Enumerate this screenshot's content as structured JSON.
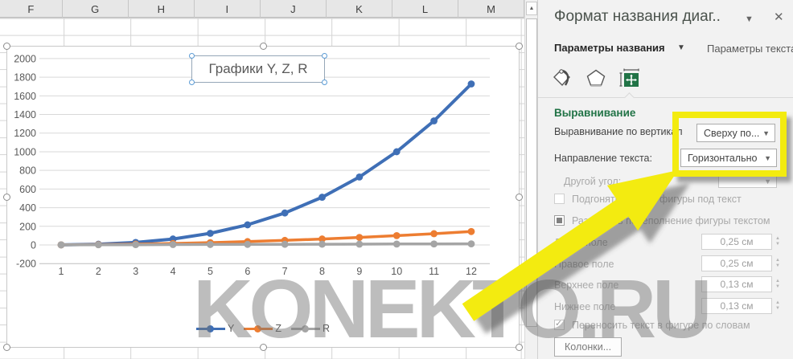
{
  "spreadsheet": {
    "column_headers": [
      "F",
      "G",
      "H",
      "I",
      "J",
      "K",
      "L",
      "M"
    ]
  },
  "chart_data": {
    "type": "line",
    "title": "Графики Y, Z, R",
    "x": [
      1,
      2,
      3,
      4,
      5,
      6,
      7,
      8,
      9,
      10,
      11,
      12
    ],
    "series": [
      {
        "name": "Y",
        "color": "#3F6FB6",
        "values": [
          1,
          8,
          27,
          64,
          125,
          216,
          343,
          512,
          729,
          1000,
          1331,
          1728
        ]
      },
      {
        "name": "Z",
        "color": "#ED7D31",
        "values": [
          1,
          4,
          9,
          16,
          25,
          36,
          49,
          64,
          81,
          100,
          121,
          144
        ]
      },
      {
        "name": "R",
        "color": "#A5A5A5",
        "values": [
          1,
          2,
          3,
          4,
          5,
          6,
          7,
          8,
          9,
          10,
          11,
          12
        ]
      }
    ],
    "ylim": [
      -200,
      2000
    ],
    "ytick_step": 200,
    "xlabel": "",
    "ylabel": "",
    "legend_position": "bottom",
    "grid": true
  },
  "scrollbar": {
    "up_arrow": "▲"
  },
  "panel": {
    "title": "Формат названия диаг..",
    "title_caret": "▼",
    "close": "✕",
    "tabs": [
      {
        "label": "Параметры названия",
        "caret": "▼",
        "selected": true
      },
      {
        "label": "Параметры текста",
        "selected": false
      }
    ],
    "section": "Выравнивание",
    "fields": {
      "vertical_alignment": {
        "label": "Выравнивание по вертикал",
        "value": "Сверху по...",
        "caret": "▼"
      },
      "text_direction": {
        "label": "Направление текста:",
        "value": "Горизонтально",
        "caret": "▼"
      },
      "custom_angle": {
        "label": "Другой угол:",
        "value": "",
        "caret": "▼"
      },
      "resize_shape": {
        "label": "Подгонять размер фигуры под текст",
        "checked": false
      },
      "allow_overflow": {
        "label": "Разрешить переполнение фигуры текстом",
        "checked": "mixed"
      },
      "left_margin": {
        "label": "Левое поле",
        "value": "0,25 см"
      },
      "right_margin": {
        "label": "Правое поле",
        "value": "0,25 см"
      },
      "top_margin": {
        "label": "Верхнее поле",
        "value": "0,13 см"
      },
      "bottom_margin": {
        "label": "Нижнее поле",
        "value": "0,13 см"
      },
      "wrap_text": {
        "label": "Переносить текст в фигуре по словам",
        "checked": true,
        "check_glyph": "✓"
      },
      "columns_button": "Колонки..."
    },
    "spinner_up": "▲",
    "spinner_down": "▼"
  },
  "watermark": "KONEKTO.RU",
  "colors": {
    "accent_green": "#217346",
    "highlight_yellow": "#F3EB10",
    "gridline": "#D9D9D9",
    "axis_text": "#595959"
  }
}
